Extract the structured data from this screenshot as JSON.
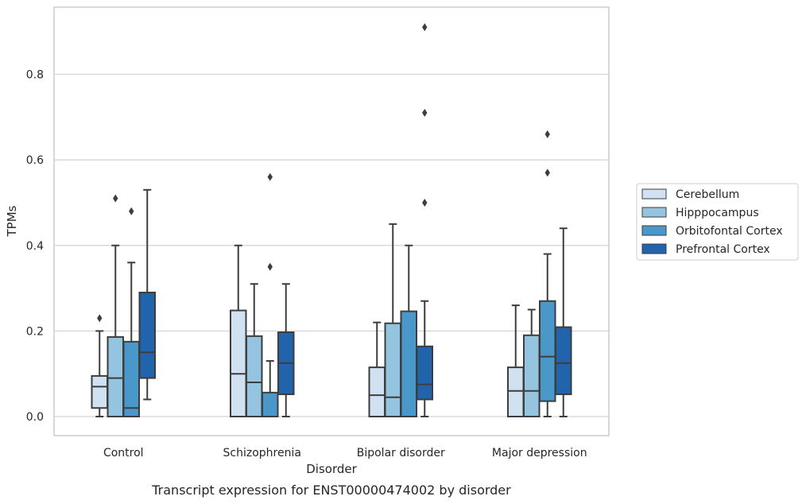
{
  "chart_data": {
    "type": "box",
    "xlabel": "Disorder",
    "ylabel": "TPMs",
    "caption": "Transcript expression for ENST00000474002 by disorder",
    "ylim": [
      -0.045,
      0.955
    ],
    "yticks": [
      0.0,
      0.2,
      0.4,
      0.6,
      0.8
    ],
    "ytick_labels": [
      "0.0",
      "0.2",
      "0.4",
      "0.6",
      "0.8"
    ],
    "grid": "horizontal",
    "legend_position": "right",
    "categories": [
      "Control",
      "Schizophrenia",
      "Bipolar disorder",
      "Major depression"
    ],
    "series": [
      {
        "name": "Cerebellum",
        "color": "#d0e1f2",
        "boxes": [
          {
            "whislo": 0.0,
            "q1": 0.02,
            "med": 0.07,
            "q3": 0.095,
            "whishi": 0.2,
            "fliers": [
              0.23
            ]
          },
          {
            "whislo": 0.0,
            "q1": 0.0,
            "med": 0.1,
            "q3": 0.248,
            "whishi": 0.4,
            "fliers": []
          },
          {
            "whislo": 0.0,
            "q1": 0.0,
            "med": 0.05,
            "q3": 0.115,
            "whishi": 0.22,
            "fliers": []
          },
          {
            "whislo": 0.0,
            "q1": 0.0,
            "med": 0.06,
            "q3": 0.115,
            "whishi": 0.26,
            "fliers": []
          }
        ]
      },
      {
        "name": "Hipppocampus",
        "color": "#94c4df",
        "boxes": [
          {
            "whislo": 0.0,
            "q1": 0.0,
            "med": 0.09,
            "q3": 0.186,
            "whishi": 0.4,
            "fliers": [
              0.51
            ]
          },
          {
            "whislo": 0.0,
            "q1": 0.0,
            "med": 0.08,
            "q3": 0.188,
            "whishi": 0.31,
            "fliers": []
          },
          {
            "whislo": 0.0,
            "q1": 0.0,
            "med": 0.045,
            "q3": 0.218,
            "whishi": 0.45,
            "fliers": []
          },
          {
            "whislo": 0.0,
            "q1": 0.0,
            "med": 0.06,
            "q3": 0.19,
            "whishi": 0.25,
            "fliers": []
          }
        ]
      },
      {
        "name": "Orbitofontal Cortex",
        "color": "#4a98c9",
        "boxes": [
          {
            "whislo": 0.0,
            "q1": 0.0,
            "med": 0.02,
            "q3": 0.175,
            "whishi": 0.36,
            "fliers": [
              0.48
            ]
          },
          {
            "whislo": 0.0,
            "q1": 0.0,
            "med": 0.0,
            "q3": 0.056,
            "whishi": 0.13,
            "fliers": [
              0.35,
              0.56
            ]
          },
          {
            "whislo": 0.0,
            "q1": 0.0,
            "med": 0.0,
            "q3": 0.246,
            "whishi": 0.4,
            "fliers": []
          },
          {
            "whislo": 0.0,
            "q1": 0.036,
            "med": 0.14,
            "q3": 0.27,
            "whishi": 0.38,
            "fliers": [
              0.57,
              0.66
            ]
          }
        ]
      },
      {
        "name": "Prefrontal Cortex",
        "color": "#2164ab",
        "boxes": [
          {
            "whislo": 0.04,
            "q1": 0.09,
            "med": 0.15,
            "q3": 0.29,
            "whishi": 0.53,
            "fliers": []
          },
          {
            "whislo": 0.0,
            "q1": 0.052,
            "med": 0.125,
            "q3": 0.197,
            "whishi": 0.31,
            "fliers": []
          },
          {
            "whislo": 0.0,
            "q1": 0.04,
            "med": 0.075,
            "q3": 0.164,
            "whishi": 0.27,
            "fliers": [
              0.5,
              0.71,
              0.91
            ]
          },
          {
            "whislo": 0.0,
            "q1": 0.052,
            "med": 0.125,
            "q3": 0.209,
            "whishi": 0.44,
            "fliers": []
          }
        ]
      }
    ]
  }
}
